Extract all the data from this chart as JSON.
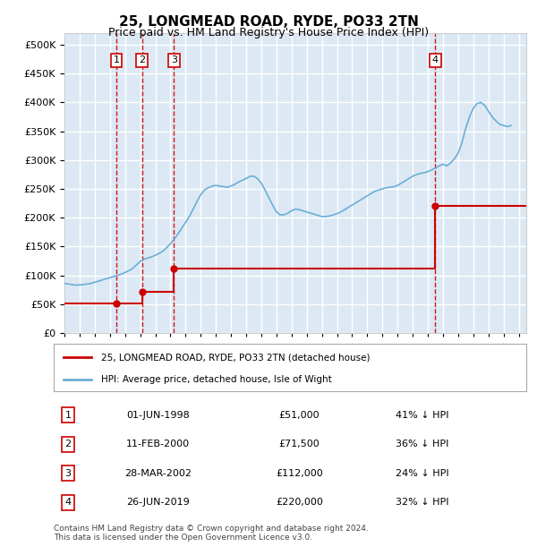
{
  "title": "25, LONGMEAD ROAD, RYDE, PO33 2TN",
  "subtitle": "Price paid vs. HM Land Registry's House Price Index (HPI)",
  "ylabel_ticks": [
    "£0",
    "£50K",
    "£100K",
    "£150K",
    "£200K",
    "£250K",
    "£300K",
    "£350K",
    "£400K",
    "£450K",
    "£500K"
  ],
  "ytick_values": [
    0,
    50000,
    100000,
    150000,
    200000,
    250000,
    300000,
    350000,
    400000,
    450000,
    500000
  ],
  "ylim": [
    0,
    520000
  ],
  "xlim_start": 1995.0,
  "xlim_end": 2025.5,
  "background_color": "#dce9f5",
  "plot_bg_color": "#dce9f5",
  "grid_color": "#ffffff",
  "transactions": [
    {
      "num": 1,
      "date_str": "01-JUN-1998",
      "price": 51000,
      "pct": "41%",
      "year": 1998.42
    },
    {
      "num": 2,
      "date_str": "11-FEB-2000",
      "price": 71500,
      "pct": "36%",
      "year": 2000.12
    },
    {
      "num": 3,
      "date_str": "28-MAR-2002",
      "price": 112000,
      "pct": "24%",
      "year": 2002.24
    },
    {
      "num": 4,
      "date_str": "26-JUN-2019",
      "price": 220000,
      "pct": "32%",
      "year": 2019.49
    }
  ],
  "hpi_color": "#6baed6",
  "price_color": "#cc0000",
  "vline_color": "#cc0000",
  "legend_label_price": "25, LONGMEAD ROAD, RYDE, PO33 2TN (detached house)",
  "legend_label_hpi": "HPI: Average price, detached house, Isle of Wight",
  "footer": "Contains HM Land Registry data © Crown copyright and database right 2024.\nThis data is licensed under the Open Government Licence v3.0.",
  "hpi_data": {
    "years": [
      1995.0,
      1995.25,
      1995.5,
      1995.75,
      1996.0,
      1996.25,
      1996.5,
      1996.75,
      1997.0,
      1997.25,
      1997.5,
      1997.75,
      1998.0,
      1998.25,
      1998.5,
      1998.75,
      1999.0,
      1999.25,
      1999.5,
      1999.75,
      2000.0,
      2000.25,
      2000.5,
      2000.75,
      2001.0,
      2001.25,
      2001.5,
      2001.75,
      2002.0,
      2002.25,
      2002.5,
      2002.75,
      2003.0,
      2003.25,
      2003.5,
      2003.75,
      2004.0,
      2004.25,
      2004.5,
      2004.75,
      2005.0,
      2005.25,
      2005.5,
      2005.75,
      2006.0,
      2006.25,
      2006.5,
      2006.75,
      2007.0,
      2007.25,
      2007.5,
      2007.75,
      2008.0,
      2008.25,
      2008.5,
      2008.75,
      2009.0,
      2009.25,
      2009.5,
      2009.75,
      2010.0,
      2010.25,
      2010.5,
      2010.75,
      2011.0,
      2011.25,
      2011.5,
      2011.75,
      2012.0,
      2012.25,
      2012.5,
      2012.75,
      2013.0,
      2013.25,
      2013.5,
      2013.75,
      2014.0,
      2014.25,
      2014.5,
      2014.75,
      2015.0,
      2015.25,
      2015.5,
      2015.75,
      2016.0,
      2016.25,
      2016.5,
      2016.75,
      2017.0,
      2017.25,
      2017.5,
      2017.75,
      2018.0,
      2018.25,
      2018.5,
      2018.75,
      2019.0,
      2019.25,
      2019.5,
      2019.75,
      2020.0,
      2020.25,
      2020.5,
      2020.75,
      2021.0,
      2021.25,
      2021.5,
      2021.75,
      2022.0,
      2022.25,
      2022.5,
      2022.75,
      2023.0,
      2023.25,
      2023.5,
      2023.75,
      2024.0,
      2024.25,
      2024.5
    ],
    "values": [
      86000,
      85000,
      84000,
      83000,
      83500,
      84000,
      85000,
      86000,
      88000,
      90000,
      92000,
      94000,
      96000,
      98000,
      100000,
      102000,
      105000,
      108000,
      112000,
      118000,
      124000,
      128000,
      130000,
      132000,
      135000,
      138000,
      142000,
      148000,
      155000,
      163000,
      172000,
      182000,
      192000,
      202000,
      215000,
      228000,
      240000,
      248000,
      252000,
      255000,
      256000,
      255000,
      254000,
      253000,
      255000,
      258000,
      262000,
      265000,
      268000,
      272000,
      272000,
      268000,
      260000,
      248000,
      235000,
      222000,
      210000,
      205000,
      205000,
      208000,
      212000,
      215000,
      214000,
      212000,
      210000,
      208000,
      206000,
      204000,
      202000,
      202000,
      203000,
      205000,
      207000,
      210000,
      214000,
      218000,
      222000,
      226000,
      230000,
      234000,
      238000,
      242000,
      246000,
      248000,
      250000,
      252000,
      253000,
      254000,
      256000,
      260000,
      264000,
      268000,
      272000,
      275000,
      277000,
      278000,
      280000,
      283000,
      286000,
      290000,
      293000,
      290000,
      295000,
      302000,
      312000,
      330000,
      355000,
      375000,
      390000,
      398000,
      400000,
      395000,
      385000,
      375000,
      368000,
      362000,
      360000,
      358000,
      360000
    ]
  },
  "price_line_data": {
    "years": [
      1995.0,
      1998.42,
      1998.42,
      2000.12,
      2000.12,
      2002.24,
      2002.24,
      2019.49,
      2019.49,
      2025.3
    ],
    "values": [
      51000,
      51000,
      51000,
      71500,
      71500,
      112000,
      112000,
      220000,
      220000,
      220000
    ]
  }
}
